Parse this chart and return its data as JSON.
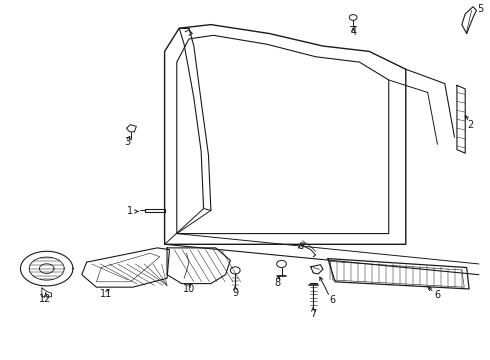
{
  "bg_color": "#ffffff",
  "line_color": "#1a1a1a",
  "fig_width": 4.9,
  "fig_height": 3.6,
  "dpi": 100,
  "parts": {
    "door_outer": {
      "x": [
        0.32,
        0.32,
        0.36,
        0.44,
        0.56,
        0.67,
        0.75,
        0.82,
        0.82,
        0.32
      ],
      "y": [
        0.33,
        0.88,
        0.94,
        0.94,
        0.91,
        0.87,
        0.85,
        0.81,
        0.33,
        0.33
      ]
    },
    "door_inner": {
      "x": [
        0.35,
        0.35,
        0.375,
        0.44,
        0.55,
        0.65,
        0.72,
        0.78,
        0.78,
        0.35
      ],
      "y": [
        0.36,
        0.85,
        0.91,
        0.91,
        0.88,
        0.84,
        0.82,
        0.78,
        0.36,
        0.36
      ]
    }
  }
}
